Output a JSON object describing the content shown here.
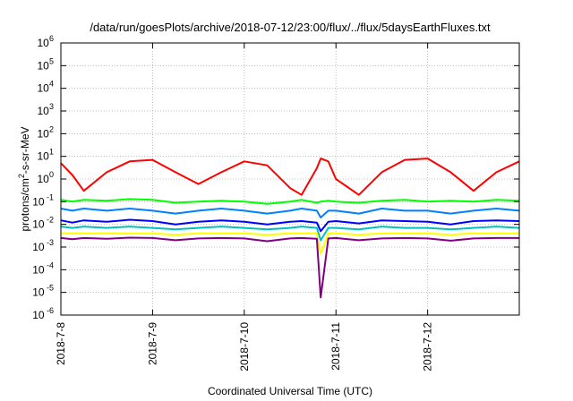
{
  "chart_data": {
    "type": "line",
    "title": "/data/run/goesPlots/archive/2018-07-12/23:00/flux/../flux/5daysEarthFluxes.txt",
    "xlabel": "Coordinated Universal Time (UTC)",
    "ylabel": {
      "base": "protons/cm",
      "sup": "2",
      "rest": "-s-sr-MeV"
    },
    "y_scale": "log",
    "ylim": [
      1e-06,
      1000000.0
    ],
    "xlim": [
      "2018-07-08 00:00",
      "2018-07-12 23:59"
    ],
    "grid": true,
    "legend": "none",
    "x_ticks": [
      "2018-7-8",
      "2018-7-9",
      "2018-7-10",
      "2018-7-11",
      "2018-7-12"
    ],
    "y_ticks": [
      {
        "base": "10",
        "exp": "-6"
      },
      {
        "base": "10",
        "exp": "-5"
      },
      {
        "base": "10",
        "exp": "-4"
      },
      {
        "base": "10",
        "exp": "-3"
      },
      {
        "base": "10",
        "exp": "-2"
      },
      {
        "base": "10",
        "exp": "-1"
      },
      {
        "base": "10",
        "exp": "0"
      },
      {
        "base": "10",
        "exp": "1"
      },
      {
        "base": "10",
        "exp": "2"
      },
      {
        "base": "10",
        "exp": "3"
      },
      {
        "base": "10",
        "exp": "4"
      },
      {
        "base": "10",
        "exp": "5"
      },
      {
        "base": "10",
        "exp": "6"
      }
    ],
    "x_dates": [
      "2018-07-08 00:00",
      "2018-07-08 03:00",
      "2018-07-08 06:00",
      "2018-07-08 12:00",
      "2018-07-08 18:00",
      "2018-07-09 00:00",
      "2018-07-09 06:00",
      "2018-07-09 12:00",
      "2018-07-09 18:00",
      "2018-07-10 00:00",
      "2018-07-10 06:00",
      "2018-07-10 12:00",
      "2018-07-10 15:00",
      "2018-07-10 19:00",
      "2018-07-10 20:00",
      "2018-07-10 22:00",
      "2018-07-11 00:00",
      "2018-07-11 06:00",
      "2018-07-11 12:00",
      "2018-07-11 18:00",
      "2018-07-12 00:00",
      "2018-07-12 06:00",
      "2018-07-12 12:00",
      "2018-07-12 18:00",
      "2018-07-12 23:59"
    ],
    "series": [
      {
        "color": "#ff0000",
        "values": [
          5,
          1.5,
          0.3,
          2,
          6,
          7,
          2,
          0.6,
          2,
          6,
          4,
          0.4,
          0.2,
          3,
          8,
          6,
          1,
          0.2,
          2,
          7,
          8,
          2,
          0.3,
          2,
          6
        ]
      },
      {
        "color": "#00ff00",
        "values": [
          0.12,
          0.1,
          0.12,
          0.11,
          0.13,
          0.12,
          0.09,
          0.1,
          0.11,
          0.1,
          0.08,
          0.1,
          0.12,
          0.09,
          0.1,
          0.11,
          0.1,
          0.09,
          0.11,
          0.12,
          0.1,
          0.11,
          0.1,
          0.12,
          0.11
        ]
      },
      {
        "color": "#0080ff",
        "values": [
          0.05,
          0.04,
          0.05,
          0.04,
          0.05,
          0.04,
          0.03,
          0.04,
          0.05,
          0.04,
          0.03,
          0.04,
          0.05,
          0.04,
          0.02,
          0.04,
          0.04,
          0.03,
          0.05,
          0.04,
          0.04,
          0.03,
          0.04,
          0.05,
          0.04
        ]
      },
      {
        "color": "#0000ff",
        "values": [
          0.015,
          0.012,
          0.015,
          0.013,
          0.016,
          0.014,
          0.01,
          0.013,
          0.015,
          0.013,
          0.01,
          0.013,
          0.014,
          0.012,
          0.005,
          0.013,
          0.014,
          0.011,
          0.015,
          0.014,
          0.013,
          0.01,
          0.014,
          0.015,
          0.014
        ]
      },
      {
        "color": "#00c0c0",
        "values": [
          0.008,
          0.007,
          0.008,
          0.007,
          0.008,
          0.007,
          0.006,
          0.007,
          0.008,
          0.007,
          0.006,
          0.007,
          0.008,
          0.007,
          0.002,
          0.007,
          0.007,
          0.006,
          0.008,
          0.007,
          0.007,
          0.006,
          0.007,
          0.008,
          0.007
        ]
      },
      {
        "color": "#ffff00",
        "values": [
          0.004,
          0.004,
          0.004,
          0.004,
          0.004,
          0.004,
          0.0035,
          0.004,
          0.004,
          0.004,
          0.0035,
          0.004,
          0.004,
          0.004,
          0.0005,
          0.004,
          0.004,
          0.0035,
          0.004,
          0.004,
          0.004,
          0.0035,
          0.004,
          0.004,
          0.004
        ]
      },
      {
        "color": "#800080",
        "values": [
          0.0025,
          0.0022,
          0.0025,
          0.0023,
          0.0026,
          0.0025,
          0.002,
          0.0024,
          0.0025,
          0.0024,
          0.0018,
          0.0024,
          0.0025,
          0.0023,
          6e-06,
          0.0024,
          0.0025,
          0.002,
          0.0024,
          0.0025,
          0.0024,
          0.0019,
          0.0024,
          0.0025,
          0.0025
        ]
      }
    ]
  }
}
